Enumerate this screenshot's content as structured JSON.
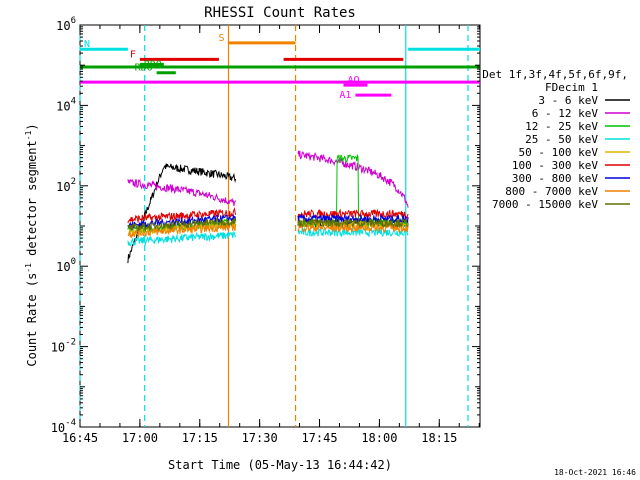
{
  "chart_data": {
    "type": "line",
    "title": "RHESSI Count Rates",
    "xlabel": "Start Time (05-May-13 16:44:42)",
    "ylabel_main": "Count Rate (s",
    "ylabel_sup1": "-1",
    "ylabel_mid": " detector segment",
    "ylabel_sup2": "-1",
    "ylabel_end": ")",
    "yscale": "log",
    "xlim_min": [
      16.75,
      18.42
    ],
    "x_ticks": [
      "16:45",
      "17:00",
      "17:15",
      "17:30",
      "17:45",
      "18:00",
      "18:15"
    ],
    "y_ticks": [
      {
        "exp": 6,
        "base": "10",
        "sup": "6"
      },
      {
        "exp": 4,
        "base": "10",
        "sup": "4"
      },
      {
        "exp": 2,
        "base": "10",
        "sup": "2"
      },
      {
        "exp": 0,
        "base": "10",
        "sup": "0"
      },
      {
        "exp": -2,
        "base": "10",
        "sup": "-2"
      },
      {
        "exp": -4,
        "base": "10",
        "sup": "-4"
      }
    ],
    "ylim_exp": [
      -4,
      6
    ],
    "legend_header": [
      "Det 1f,3f,4f,5f,6f,9f,",
      "FDecim 1"
    ],
    "series": [
      {
        "name": "3 - 6 keV",
        "color": "#000000",
        "level1": 1.5,
        "level2": 12
      },
      {
        "name": "6 - 12 keV",
        "color": "#d000d0",
        "level1": 120,
        "level2": 600
      },
      {
        "name": "12 - 25 keV",
        "color": "#00c000",
        "level1": 10,
        "level2": 12
      },
      {
        "name": "25 - 50 keV",
        "color": "#00e0e0",
        "level1": 5,
        "level2": 7
      },
      {
        "name": "50 - 100 keV",
        "color": "#d8b800",
        "level1": 9,
        "level2": 11
      },
      {
        "name": "100 - 300 keV",
        "color": "#e00000",
        "level1": 18,
        "level2": 20
      },
      {
        "name": "300 - 800 keV",
        "color": "#0000e0",
        "level1": 13,
        "level2": 15
      },
      {
        "name": "800 - 7000 keV",
        "color": "#f08000",
        "level1": 8,
        "level2": 9
      },
      {
        "name": "7000 - 15000 keV",
        "color": "#607000",
        "level1": 11,
        "level2": 12
      }
    ],
    "flag_bars": [
      {
        "label": "N",
        "color": "#00e0e0",
        "segments": [
          [
            16.75,
            16.95
          ],
          [
            18.12,
            18.42
          ]
        ]
      },
      {
        "label": "F",
        "color": "#e00000",
        "segments": [
          [
            17.0,
            17.33
          ],
          [
            17.6,
            18.1
          ]
        ]
      },
      {
        "label": "RD9",
        "color": "#00a000",
        "segments": [
          [
            17.0,
            17.1
          ]
        ]
      },
      {
        "label": "",
        "color": "#00a000",
        "segments": [
          [
            16.75,
            18.42
          ]
        ]
      },
      {
        "label": "RD6",
        "color": "#00a000",
        "segments": [
          [
            17.07,
            17.15
          ]
        ]
      },
      {
        "label": "",
        "color": "#ff00ff",
        "segments": [
          [
            16.75,
            18.42
          ]
        ]
      },
      {
        "label": "AQ",
        "color": "#ff00ff",
        "segments": [
          [
            17.85,
            17.95
          ]
        ]
      },
      {
        "label": "A1",
        "color": "#ff00ff",
        "segments": [
          [
            17.9,
            18.05
          ]
        ]
      },
      {
        "label": "S",
        "color": "#f08000",
        "segments": [
          [
            17.37,
            17.65
          ]
        ]
      }
    ],
    "vlines": [
      {
        "x": 16.75,
        "color": "#00e0e0",
        "style": "dashed"
      },
      {
        "x": 17.02,
        "color": "#00e0e0",
        "style": "dashed"
      },
      {
        "x": 17.37,
        "color": "#f08000",
        "style": "solid"
      },
      {
        "x": 17.65,
        "color": "#f08000",
        "style": "dashed"
      },
      {
        "x": 18.11,
        "color": "#00e0e0",
        "style": "solid"
      },
      {
        "x": 18.37,
        "color": "#00e0e0",
        "style": "dashed"
      }
    ],
    "segments_time": [
      [
        16.95,
        17.4
      ],
      [
        17.66,
        18.12
      ]
    ],
    "footer": "18-Oct-2021 16:46"
  }
}
